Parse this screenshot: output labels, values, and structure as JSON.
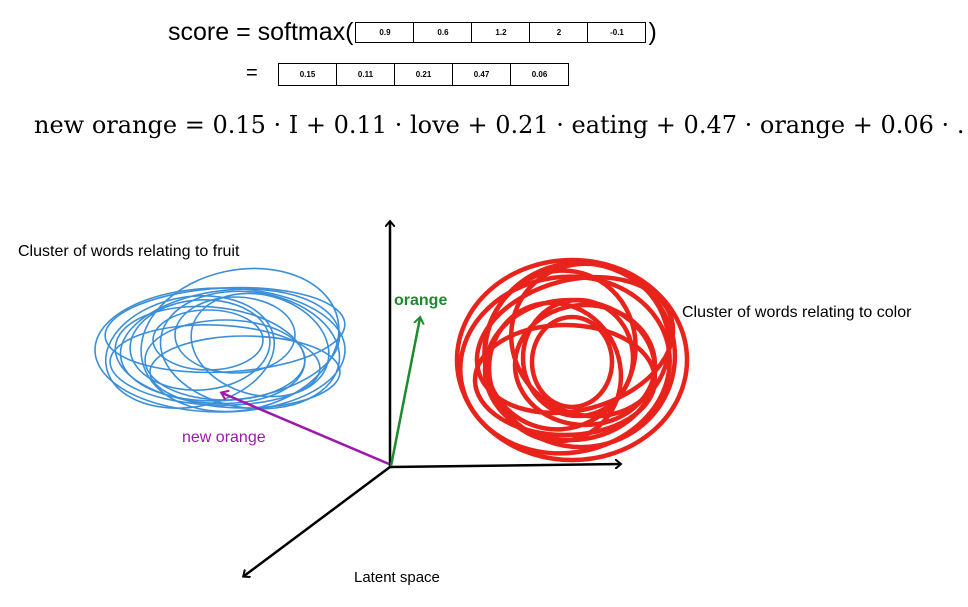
{
  "equation_top": {
    "prefix": "score = softmax(",
    "suffix": ")",
    "values": [
      "0.9",
      "0.6",
      "1.2",
      "2",
      "-0.1"
    ]
  },
  "equation_mid": {
    "prefix": "=",
    "values": [
      "0.15",
      "0.11",
      "0.21",
      "0.47",
      "0.06"
    ]
  },
  "formula": "new orange = 0.15 · I + 0.11 · love + 0.21 · eating + 0.47 · orange + 0.06 · .",
  "labels": {
    "fruit_cluster": "Cluster of words relating to fruit",
    "color_cluster": "Cluster of words relating to color",
    "orange": "orange",
    "new_orange": "new orange",
    "latent_space": "Latent space"
  },
  "colors": {
    "fruit": "#3b8fd9",
    "color_cluster": "#e8231c",
    "orange_vector": "#1e8a2e",
    "new_orange_vector": "#9c1aab"
  }
}
